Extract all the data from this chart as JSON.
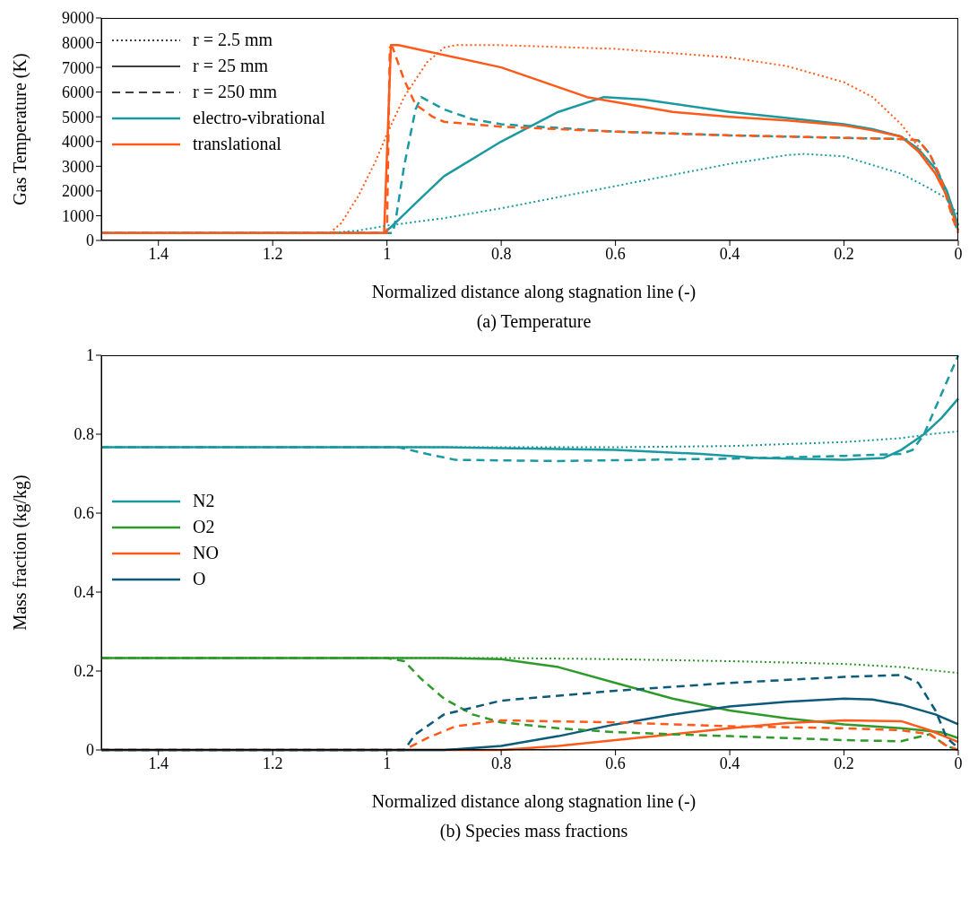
{
  "chart_data": [
    {
      "type": "line",
      "xlabel": "Normalized distance along stagnation line (-)",
      "ylabel": "Gas Temperature (K)",
      "annotations": [
        "(a) Temperature"
      ],
      "xlim": [
        1.5,
        0
      ],
      "xticks": [
        1.4,
        1.2,
        1,
        0.8,
        0.6,
        0.4,
        0.2,
        0
      ],
      "ylim": [
        0,
        9000
      ],
      "yticks": [
        0,
        1000,
        2000,
        3000,
        4000,
        5000,
        6000,
        7000,
        8000,
        9000
      ],
      "legend": "top left",
      "series": [
        {
          "name": "r = 2.5 mm",
          "color": "#000000",
          "line_style": "dotted"
        },
        {
          "name": "r = 25 mm",
          "color": "#000000",
          "line_style": "solid"
        },
        {
          "name": "r = 250 mm",
          "color": "#000000",
          "line_style": "dashed"
        },
        {
          "name": "electro-vibrational",
          "color": "#1a9aa0",
          "line_style": "solid",
          "x": [
            1.5,
            1.2,
            1.005,
            0.99,
            0.95,
            0.9,
            0.8,
            0.7,
            0.62,
            0.55,
            0.4,
            0.3,
            0.2,
            0.15,
            0.1,
            0.07,
            0.04,
            0.02,
            0
          ],
          "values": [
            300,
            300,
            300,
            600,
            1500,
            2600,
            4000,
            5200,
            5800,
            5700,
            5200,
            4950,
            4700,
            4500,
            4200,
            3700,
            2900,
            2000,
            600
          ]
        },
        {
          "name": "translational",
          "color": "#ff5a1a",
          "line_style": "solid",
          "x": [
            1.5,
            1.2,
            1.005,
            0.993,
            0.98,
            0.8,
            0.65,
            0.6,
            0.5,
            0.4,
            0.3,
            0.2,
            0.15,
            0.1,
            0.07,
            0.04,
            0.02,
            0
          ],
          "values": [
            300,
            300,
            300,
            7900,
            7900,
            7000,
            5800,
            5600,
            5200,
            5000,
            4850,
            4650,
            4450,
            4200,
            3600,
            2700,
            1800,
            400
          ]
        },
        {
          "color": "#1a9aa0",
          "line_style": "dotted",
          "x": [
            1.5,
            1.2,
            1.1,
            1.05,
            1.0,
            0.9,
            0.8,
            0.7,
            0.6,
            0.5,
            0.4,
            0.3,
            0.27,
            0.2,
            0.1,
            0.05,
            0.02,
            0
          ],
          "values": [
            300,
            300,
            300,
            400,
            600,
            900,
            1300,
            1750,
            2200,
            2650,
            3100,
            3450,
            3500,
            3400,
            2700,
            2100,
            1700,
            1000
          ]
        },
        {
          "color": "#ff5a1a",
          "line_style": "dotted",
          "x": [
            1.5,
            1.2,
            1.1,
            1.08,
            1.05,
            1.02,
            1.0,
            0.97,
            0.93,
            0.9,
            0.88,
            0.8,
            0.6,
            0.4,
            0.3,
            0.2,
            0.15,
            0.1,
            0.07,
            0.04,
            0.02,
            0
          ],
          "values": [
            300,
            300,
            300,
            700,
            1800,
            3200,
            4300,
            5800,
            7200,
            7800,
            7900,
            7900,
            7750,
            7400,
            7050,
            6400,
            5800,
            4700,
            3800,
            2700,
            1800,
            400
          ]
        },
        {
          "color": "#1a9aa0",
          "line_style": "dashed",
          "x": [
            1.5,
            1.2,
            0.99,
            0.985,
            0.97,
            0.95,
            0.94,
            0.9,
            0.85,
            0.8,
            0.6,
            0.4,
            0.2,
            0.1,
            0.07,
            0.05,
            0.03,
            0.01,
            0
          ],
          "values": [
            300,
            300,
            300,
            800,
            3000,
            5300,
            5800,
            5300,
            4900,
            4700,
            4400,
            4250,
            4150,
            4100,
            4050,
            3500,
            2500,
            1000,
            300
          ]
        },
        {
          "color": "#ff5a1a",
          "line_style": "dashed",
          "x": [
            1.5,
            1.2,
            1.0,
            0.995,
            0.99,
            0.97,
            0.95,
            0.92,
            0.9,
            0.8,
            0.6,
            0.4,
            0.2,
            0.1,
            0.07,
            0.05,
            0.03,
            0.01,
            0
          ],
          "values": [
            300,
            300,
            300,
            7800,
            7800,
            6500,
            5500,
            5000,
            4800,
            4600,
            4400,
            4250,
            4150,
            4100,
            4050,
            3500,
            2500,
            900,
            300
          ]
        }
      ]
    },
    {
      "type": "line",
      "xlabel": "Normalized distance along stagnation line (-)",
      "ylabel": "Mass fraction (kg/kg)",
      "annotations": [
        "(b) Species mass fractions"
      ],
      "xlim": [
        1.5,
        0
      ],
      "xticks": [
        1.4,
        1.2,
        1,
        0.8,
        0.6,
        0.4,
        0.2,
        0
      ],
      "ylim": [
        0,
        1
      ],
      "yticks": [
        0,
        0.2,
        0.4,
        0.6,
        0.8,
        1
      ],
      "legend": "left",
      "series": [
        {
          "name": "N2",
          "color": "#1a9aa0",
          "line_style": "solid",
          "x": [
            1.5,
            0.9,
            0.8,
            0.6,
            0.45,
            0.35,
            0.2,
            0.13,
            0.1,
            0.06,
            0.03,
            0
          ],
          "values": [
            0.767,
            0.767,
            0.765,
            0.76,
            0.75,
            0.74,
            0.735,
            0.74,
            0.76,
            0.8,
            0.84,
            0.89
          ]
        },
        {
          "name": "O2",
          "color": "#2e9a2a",
          "line_style": "solid",
          "x": [
            1.5,
            0.9,
            0.8,
            0.7,
            0.6,
            0.5,
            0.4,
            0.3,
            0.2,
            0.1,
            0.03,
            0
          ],
          "values": [
            0.233,
            0.233,
            0.23,
            0.21,
            0.17,
            0.13,
            0.1,
            0.08,
            0.065,
            0.055,
            0.045,
            0.03
          ]
        },
        {
          "name": "NO",
          "color": "#ff5a1a",
          "line_style": "solid",
          "x": [
            1.5,
            0.8,
            0.7,
            0.6,
            0.5,
            0.4,
            0.3,
            0.2,
            0.1,
            0.05,
            0
          ],
          "values": [
            0,
            0,
            0.01,
            0.025,
            0.04,
            0.055,
            0.068,
            0.075,
            0.073,
            0.05,
            0.02
          ]
        },
        {
          "name": "O",
          "color": "#0d5a7a",
          "line_style": "solid",
          "x": [
            1.5,
            0.9,
            0.8,
            0.7,
            0.6,
            0.5,
            0.4,
            0.3,
            0.2,
            0.15,
            0.1,
            0.04,
            0
          ],
          "values": [
            0,
            0,
            0.01,
            0.035,
            0.065,
            0.09,
            0.11,
            0.122,
            0.13,
            0.128,
            0.115,
            0.09,
            0.065
          ]
        },
        {
          "color": "#1a9aa0",
          "line_style": "dotted",
          "x": [
            1.5,
            0.6,
            0.4,
            0.2,
            0.1,
            0.05,
            0
          ],
          "values": [
            0.767,
            0.767,
            0.77,
            0.78,
            0.79,
            0.8,
            0.807
          ]
        },
        {
          "color": "#1a9aa0",
          "line_style": "dashed",
          "x": [
            1.5,
            0.98,
            0.93,
            0.88,
            0.7,
            0.4,
            0.2,
            0.1,
            0.08,
            0.06,
            0.03,
            0
          ],
          "values": [
            0.767,
            0.767,
            0.75,
            0.735,
            0.732,
            0.738,
            0.745,
            0.75,
            0.76,
            0.8,
            0.9,
            1.0
          ]
        },
        {
          "color": "#2e9a2a",
          "line_style": "dotted",
          "x": [
            1.5,
            0.8,
            0.6,
            0.4,
            0.2,
            0.1,
            0
          ],
          "values": [
            0.233,
            0.233,
            0.23,
            0.225,
            0.218,
            0.21,
            0.195
          ]
        },
        {
          "color": "#2e9a2a",
          "line_style": "dashed",
          "x": [
            1.5,
            1.0,
            0.97,
            0.94,
            0.9,
            0.85,
            0.8,
            0.7,
            0.6,
            0.4,
            0.2,
            0.1,
            0.05,
            0.02,
            0
          ],
          "values": [
            0.233,
            0.233,
            0.225,
            0.18,
            0.13,
            0.09,
            0.07,
            0.055,
            0.045,
            0.035,
            0.025,
            0.022,
            0.04,
            0.01,
            0
          ]
        },
        {
          "color": "#ff5a1a",
          "line_style": "dashed",
          "x": [
            1.5,
            0.97,
            0.93,
            0.88,
            0.8,
            0.6,
            0.4,
            0.2,
            0.1,
            0.05,
            0.02,
            0
          ],
          "values": [
            0,
            0,
            0.03,
            0.06,
            0.075,
            0.07,
            0.06,
            0.055,
            0.05,
            0.04,
            0.01,
            0
          ]
        },
        {
          "color": "#0d5a7a",
          "line_style": "dashed",
          "x": [
            1.5,
            0.97,
            0.95,
            0.9,
            0.8,
            0.6,
            0.4,
            0.2,
            0.1,
            0.07,
            0.04,
            0.02,
            0
          ],
          "values": [
            0,
            0,
            0.04,
            0.09,
            0.125,
            0.15,
            0.17,
            0.185,
            0.19,
            0.17,
            0.1,
            0.03,
            0.005
          ]
        }
      ]
    }
  ]
}
